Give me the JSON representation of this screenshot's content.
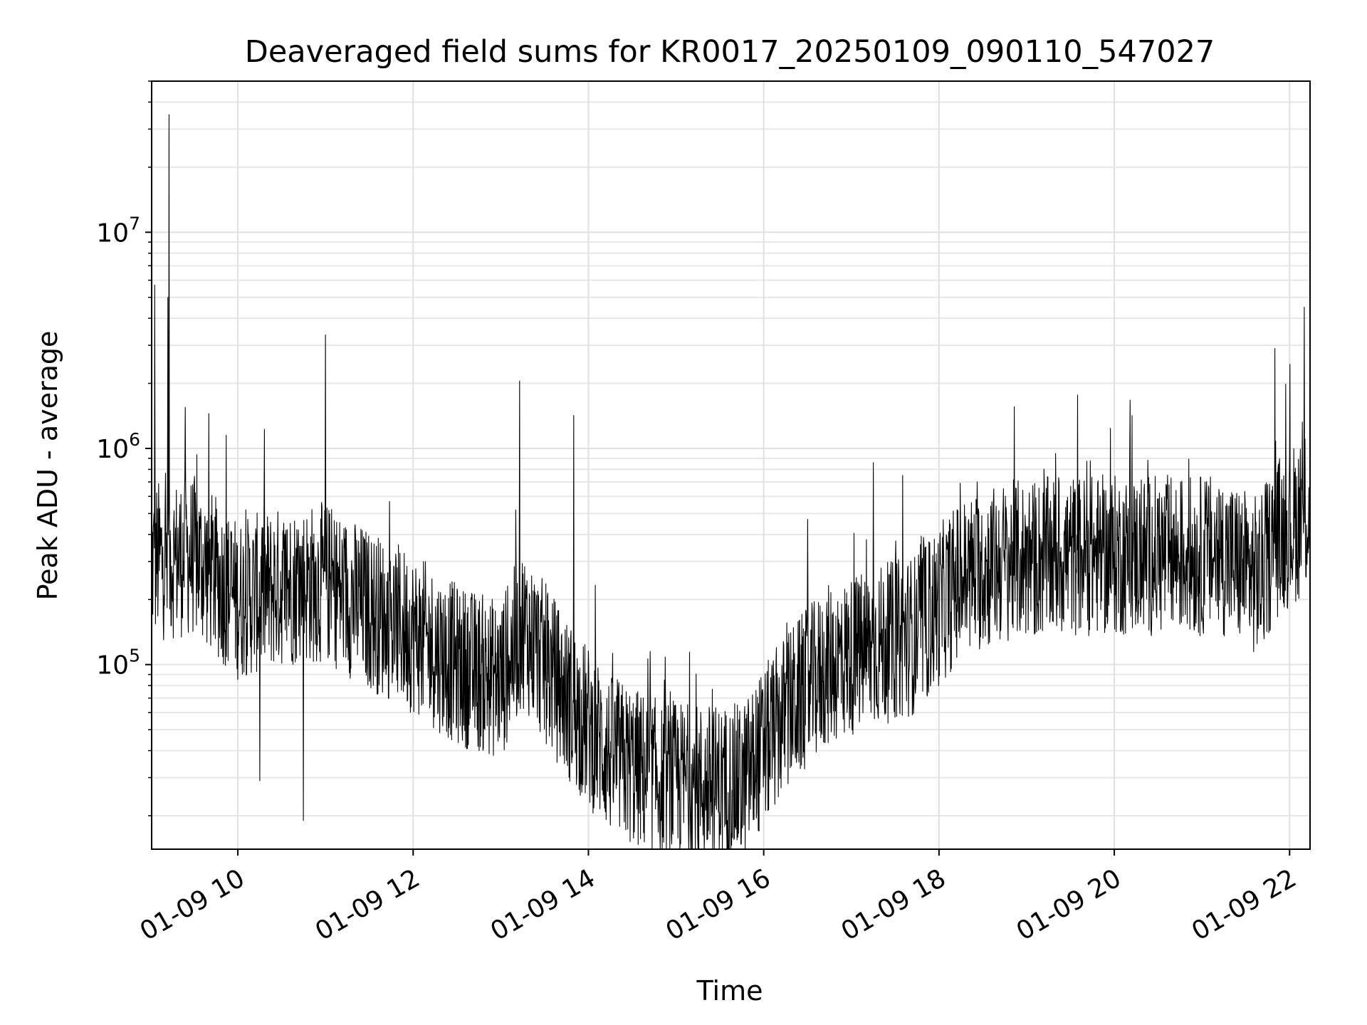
{
  "chart_data": {
    "type": "line",
    "title": "Deaveraged field sums for KR0017_20250109_090110_547027",
    "xlabel": "Time",
    "ylabel": "Peak ADU - average",
    "y_scale": "log",
    "x_range": [
      "01-09 09:01",
      "01-09 22:14"
    ],
    "ylim": [
      14000,
      50000000
    ],
    "grid": true,
    "legend": "none",
    "line_color": "#000000",
    "x_ticks": [
      {
        "value": "01-09 10:00",
        "label": "01-09 10"
      },
      {
        "value": "01-09 12:00",
        "label": "01-09 12"
      },
      {
        "value": "01-09 14:00",
        "label": "01-09 14"
      },
      {
        "value": "01-09 16:00",
        "label": "01-09 16"
      },
      {
        "value": "01-09 18:00",
        "label": "01-09 18"
      },
      {
        "value": "01-09 20:00",
        "label": "01-09 20"
      },
      {
        "value": "01-09 22:00",
        "label": "01-09 22"
      }
    ],
    "y_ticks": [
      {
        "value": 100000,
        "base": "10",
        "exp": "5"
      },
      {
        "value": 1000000,
        "base": "10",
        "exp": "6"
      },
      {
        "value": 10000000,
        "base": "10",
        "exp": "7"
      }
    ],
    "series_trend": [
      {
        "t": "01-09 09:01",
        "v": 300000
      },
      {
        "t": "01-09 09:30",
        "v": 320000
      },
      {
        "t": "01-09 10:00",
        "v": 200000
      },
      {
        "t": "01-09 10:30",
        "v": 230000
      },
      {
        "t": "01-09 11:00",
        "v": 240000
      },
      {
        "t": "01-09 11:30",
        "v": 180000
      },
      {
        "t": "01-09 12:00",
        "v": 140000
      },
      {
        "t": "01-09 12:30",
        "v": 100000
      },
      {
        "t": "01-09 13:00",
        "v": 85000
      },
      {
        "t": "01-09 13:15",
        "v": 150000
      },
      {
        "t": "01-09 13:45",
        "v": 70000
      },
      {
        "t": "01-09 14:15",
        "v": 38000
      },
      {
        "t": "01-09 14:45",
        "v": 30000
      },
      {
        "t": "01-09 15:15",
        "v": 28000
      },
      {
        "t": "01-09 15:45",
        "v": 28000
      },
      {
        "t": "01-09 16:15",
        "v": 60000
      },
      {
        "t": "01-09 16:45",
        "v": 100000
      },
      {
        "t": "01-09 17:15",
        "v": 120000
      },
      {
        "t": "01-09 17:45",
        "v": 140000
      },
      {
        "t": "01-09 18:15",
        "v": 250000
      },
      {
        "t": "01-09 18:45",
        "v": 300000
      },
      {
        "t": "01-09 19:30",
        "v": 320000
      },
      {
        "t": "01-09 20:00",
        "v": 320000
      },
      {
        "t": "01-09 20:45",
        "v": 320000
      },
      {
        "t": "01-09 21:15",
        "v": 320000
      },
      {
        "t": "01-09 21:40",
        "v": 250000
      },
      {
        "t": "01-09 21:50",
        "v": 380000
      },
      {
        "t": "01-09 22:14",
        "v": 520000
      }
    ],
    "spikes": [
      {
        "t": "01-09 09:03",
        "v": 5700000
      },
      {
        "t": "01-09 09:13",
        "v": 35000000
      },
      {
        "t": "01-09 09:12",
        "v": 5000000
      },
      {
        "t": "01-09 09:24",
        "v": 1550000
      },
      {
        "t": "01-09 09:40",
        "v": 1450000
      },
      {
        "t": "01-09 09:52",
        "v": 1150000
      },
      {
        "t": "01-09 11:00",
        "v": 3350000
      },
      {
        "t": "01-09 13:13",
        "v": 2050000
      },
      {
        "t": "01-09 13:50",
        "v": 1420000
      },
      {
        "t": "01-09 16:30",
        "v": 470000
      },
      {
        "t": "01-09 17:15",
        "v": 860000
      },
      {
        "t": "01-09 17:35",
        "v": 750000
      },
      {
        "t": "01-09 21:50",
        "v": 2900000
      },
      {
        "t": "01-09 22:10",
        "v": 4500000
      }
    ],
    "dips": [
      {
        "t": "01-09 10:15",
        "v": 29000
      },
      {
        "t": "01-09 10:45",
        "v": 19000
      },
      {
        "t": "01-09 14:50",
        "v": 19000
      },
      {
        "t": "01-09 15:35",
        "v": 19000
      },
      {
        "t": "01-09 15:55",
        "v": 19500
      }
    ]
  }
}
